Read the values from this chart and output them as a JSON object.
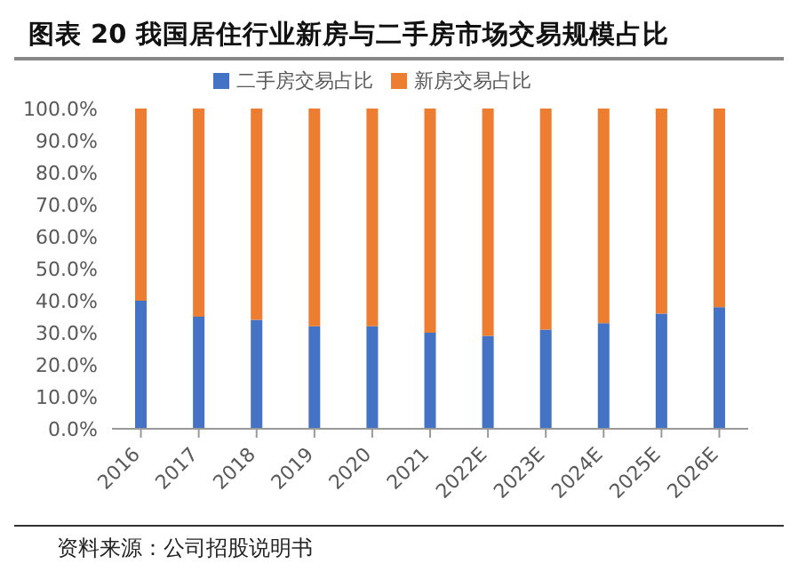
{
  "chart_data": {
    "type": "bar",
    "stacked": true,
    "title": "图表 20  我国居住行业新房与二手房市场交易规模占比",
    "annotations": [
      "资料来源：公司招股说明书"
    ],
    "categories": [
      "2016",
      "2017",
      "2018",
      "2019",
      "2020",
      "2021",
      "2022E",
      "2023E",
      "2024E",
      "2025E",
      "2026E"
    ],
    "series": [
      {
        "name": "二手房交易占比",
        "color": "#4472c4",
        "values": [
          40,
          35,
          34,
          32,
          32,
          30,
          29,
          31,
          33,
          36,
          38
        ]
      },
      {
        "name": "新房交易占比",
        "color": "#ed7d31",
        "values": [
          60,
          65,
          66,
          68,
          68,
          70,
          71,
          69,
          67,
          64,
          62
        ]
      }
    ],
    "ylim": [
      0,
      100
    ],
    "yticks": [
      {
        "value": 0,
        "label": "0.0%"
      },
      {
        "value": 10,
        "label": "10.0%"
      },
      {
        "value": 20,
        "label": "20.0%"
      },
      {
        "value": 30,
        "label": "30.0%"
      },
      {
        "value": 40,
        "label": "40.0%"
      },
      {
        "value": 50,
        "label": "50.0%"
      },
      {
        "value": 60,
        "label": "60.0%"
      },
      {
        "value": 70,
        "label": "70.0%"
      },
      {
        "value": 80,
        "label": "80.0%"
      },
      {
        "value": 90,
        "label": "90.0%"
      },
      {
        "value": 100,
        "label": "100.0%"
      }
    ],
    "grid": false,
    "legend": "top"
  }
}
